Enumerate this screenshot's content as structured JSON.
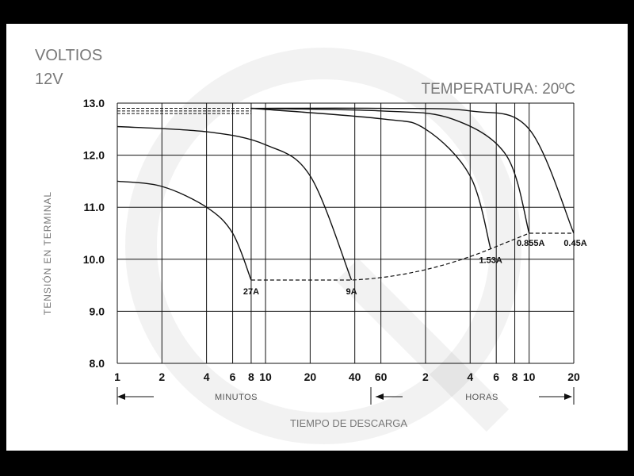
{
  "chart_data": {
    "type": "line",
    "y_units_label": "VOLTIOS",
    "nominal_voltage": "12V",
    "temperature_label": "TEMPERATURA: 20ºC",
    "ylabel": "TENSIÓN EN TERMINAL",
    "xlabel": "TIEMPO DE DESCARGA",
    "x_segments": [
      {
        "label": "MINUTOS",
        "ticks": [
          "1",
          "2",
          "4",
          "6",
          "8",
          "10",
          "20",
          "40",
          "60"
        ]
      },
      {
        "label": "HORAS",
        "ticks": [
          "2",
          "4",
          "6",
          "8",
          "10",
          "20"
        ]
      }
    ],
    "x_scale": "log",
    "xlim_minutes": [
      1,
      1200
    ],
    "yticks": [
      "13.0",
      "12.0",
      "11.0",
      "10.0",
      "9.0",
      "8.0"
    ],
    "ylim": [
      8.0,
      13.0
    ],
    "grid": true,
    "series": [
      {
        "name": "27A",
        "x_minutes": [
          1,
          2,
          4,
          6,
          8
        ],
        "y": [
          11.5,
          11.4,
          11.0,
          10.5,
          9.6
        ]
      },
      {
        "name": "9A",
        "x_minutes": [
          1,
          4,
          10,
          20,
          38
        ],
        "y": [
          12.55,
          12.45,
          12.2,
          11.6,
          9.6
        ]
      },
      {
        "name": "1.53A",
        "x_minutes": [
          8,
          60,
          120,
          240,
          330
        ],
        "y": [
          12.9,
          12.7,
          12.5,
          11.6,
          10.2
        ]
      },
      {
        "name": "0.855A",
        "x_minutes": [
          8,
          60,
          180,
          420,
          600
        ],
        "y": [
          12.9,
          12.85,
          12.7,
          12.0,
          10.5
        ]
      },
      {
        "name": "0.45A",
        "x_minutes": [
          8,
          60,
          240,
          600,
          1200
        ],
        "y": [
          12.9,
          12.9,
          12.85,
          12.5,
          10.5
        ]
      }
    ],
    "cutoff_line": {
      "x_minutes": [
        8,
        38,
        330,
        600,
        1200
      ],
      "y": [
        9.6,
        9.6,
        10.2,
        10.5,
        10.5
      ]
    }
  }
}
